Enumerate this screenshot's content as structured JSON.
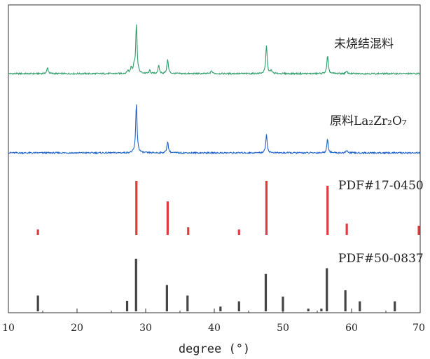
{
  "chart_data": {
    "type": "line",
    "xlabel": "degree (°)",
    "ylabel": "",
    "xlim": [
      10,
      70
    ],
    "x_ticks": [
      "10",
      "20",
      "30",
      "40",
      "50",
      "60",
      "70"
    ],
    "grid": false,
    "legend": "none",
    "series": [
      {
        "name": "未烧结混料",
        "type": "line",
        "color": "#2e9e6a",
        "peaks": [
          {
            "x": 15.7,
            "h": 0.12
          },
          {
            "x": 27.4,
            "h": 0.06
          },
          {
            "x": 27.9,
            "h": 0.12
          },
          {
            "x": 28.3,
            "h": 0.14
          },
          {
            "x": 28.65,
            "h": 1.0
          },
          {
            "x": 30.6,
            "h": 0.06
          },
          {
            "x": 31.9,
            "h": 0.16
          },
          {
            "x": 33.2,
            "h": 0.3
          },
          {
            "x": 39.6,
            "h": 0.06
          },
          {
            "x": 47.6,
            "h": 0.58
          },
          {
            "x": 48.3,
            "h": 0.06
          },
          {
            "x": 56.5,
            "h": 0.36
          },
          {
            "x": 59.3,
            "h": 0.05
          }
        ]
      },
      {
        "name": "原料La₂Zr₂O₇",
        "type": "line",
        "color": "#1f63c6",
        "peaks": [
          {
            "x": 28.65,
            "h": 1.0
          },
          {
            "x": 33.2,
            "h": 0.24
          },
          {
            "x": 47.6,
            "h": 0.38
          },
          {
            "x": 56.5,
            "h": 0.28
          },
          {
            "x": 59.3,
            "h": 0.05
          }
        ]
      },
      {
        "name": "PDF#17-0450",
        "type": "stick",
        "color": "#e23b3b",
        "sticks": [
          {
            "x": 14.3,
            "h": 0.1
          },
          {
            "x": 28.65,
            "h": 1.0
          },
          {
            "x": 33.2,
            "h": 0.62
          },
          {
            "x": 36.2,
            "h": 0.14
          },
          {
            "x": 43.6,
            "h": 0.1
          },
          {
            "x": 47.6,
            "h": 1.0
          },
          {
            "x": 56.5,
            "h": 0.91
          },
          {
            "x": 59.3,
            "h": 0.21
          },
          {
            "x": 69.8,
            "h": 0.17
          }
        ]
      },
      {
        "name": "PDF#50-0837",
        "type": "stick",
        "color": "#444444",
        "sticks": [
          {
            "x": 14.3,
            "h": 0.3
          },
          {
            "x": 27.3,
            "h": 0.2
          },
          {
            "x": 28.6,
            "h": 1.0
          },
          {
            "x": 33.1,
            "h": 0.5
          },
          {
            "x": 36.1,
            "h": 0.3
          },
          {
            "x": 40.9,
            "h": 0.09
          },
          {
            "x": 43.6,
            "h": 0.19
          },
          {
            "x": 47.5,
            "h": 0.71
          },
          {
            "x": 50.0,
            "h": 0.28
          },
          {
            "x": 53.7,
            "h": 0.05
          },
          {
            "x": 55.6,
            "h": 0.05
          },
          {
            "x": 56.4,
            "h": 0.82
          },
          {
            "x": 59.1,
            "h": 0.4
          },
          {
            "x": 61.2,
            "h": 0.19
          },
          {
            "x": 66.3,
            "h": 0.19
          }
        ]
      }
    ]
  }
}
